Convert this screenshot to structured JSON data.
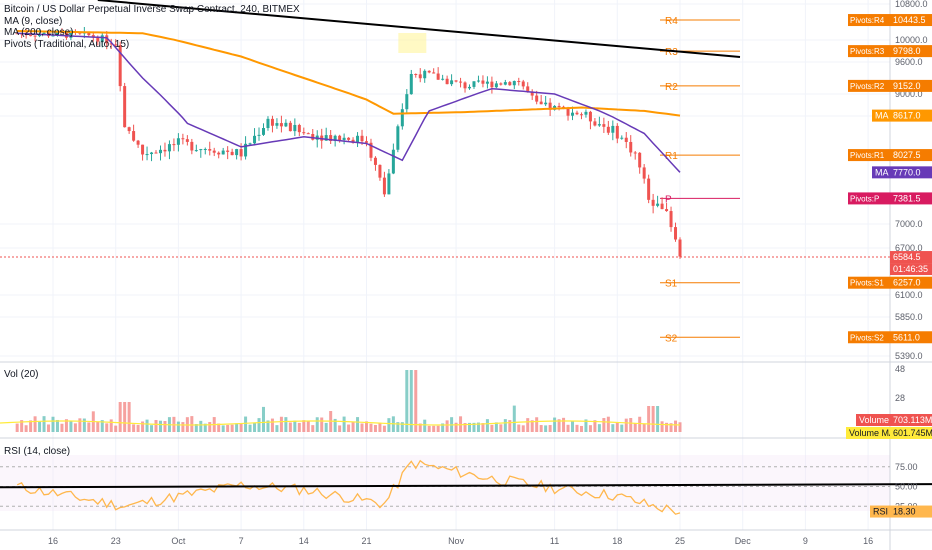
{
  "header": {
    "title": "Bitcoin / US Dollar Perpetual Inverse Swap Contract, 240, BITMEX",
    "ma1_label": "MA (9, close)",
    "ma2_label": "MA (200, close)",
    "pivots_label": "Pivots (Traditional, Auto, 15)"
  },
  "volume_panel": {
    "label": "Vol (20)"
  },
  "rsi_panel": {
    "label": "RSI (14, close)"
  },
  "price_axis": {
    "ticks": [
      "10800.0",
      "10000.0",
      "9600.0",
      "9000.0",
      "8610.0",
      "7000.0",
      "6700.0",
      "6100.0",
      "5850.0",
      "5390.0"
    ]
  },
  "volume_axis": {
    "ticks": [
      "48",
      "28"
    ]
  },
  "rsi_axis": {
    "ticks": [
      "75.00",
      "50.00",
      "25.00"
    ]
  },
  "x_axis": {
    "ticks": [
      "16",
      "23",
      "Oct",
      "7",
      "14",
      "21",
      "Nov",
      "11",
      "18",
      "25",
      "Dec",
      "9",
      "16"
    ]
  },
  "pivot_levels": [
    {
      "name": "R4",
      "value": 10443.5,
      "tag": "Pivots:R4",
      "tag_value": "10443.5",
      "color": "#f57c00"
    },
    {
      "name": "R3",
      "value": 9798.0,
      "tag": "Pivots:R3",
      "tag_value": "9798.0",
      "color": "#f57c00"
    },
    {
      "name": "R2",
      "value": 9152.0,
      "tag": "Pivots:R2",
      "tag_value": "9152.0",
      "color": "#f57c00"
    },
    {
      "name": "R1",
      "value": 8027.5,
      "tag": "Pivots:R1",
      "tag_value": "8027.5",
      "color": "#f57c00"
    },
    {
      "name": "P",
      "value": 7381.5,
      "tag": "Pivots:P",
      "tag_value": "7381.5",
      "color": "#d81b60"
    },
    {
      "name": "S1",
      "value": 6257.0,
      "tag": "Pivots:S1",
      "tag_value": "6257.0",
      "color": "#f57c00"
    },
    {
      "name": "S2",
      "value": 5611.0,
      "tag": "Pivots:S2",
      "tag_value": "5611.0",
      "color": "#f57c00"
    }
  ],
  "value_tags": {
    "ma200": {
      "label": "MA",
      "value": "8617.0",
      "color": "#ff9800"
    },
    "ma9": {
      "label": "MA",
      "value": "7770.0",
      "color": "#673ab7"
    },
    "last_price": {
      "value": "6584.5",
      "color": "#ef5350"
    },
    "countdown": {
      "value": "01:46:35",
      "color": "#ef5350"
    },
    "volume": {
      "label": "Volume",
      "value": "703.113M",
      "color": "#ef5350"
    },
    "volume_ma": {
      "label": "Volume MA",
      "value": "601.745M",
      "color": "#ffeb3b"
    },
    "rsi": {
      "label": "RSI",
      "value": "18.30",
      "color": "#ffb74d"
    }
  },
  "colors": {
    "up": "#26a69a",
    "down": "#ef5350",
    "ma9": "#673ab7",
    "ma200": "#ff9800",
    "rsi": "#ffb74d",
    "trendline": "#000000",
    "pivot": "#f57c00",
    "pivot_p": "#d81b60"
  },
  "chart_data": {
    "type": "candlestick",
    "price_series_key_points": [
      {
        "date": "Sep 12",
        "price": 10150
      },
      {
        "date": "Sep 20",
        "price": 10100
      },
      {
        "date": "Sep 23",
        "price": 9950
      },
      {
        "date": "Sep 24",
        "price": 8500
      },
      {
        "date": "Sep 26",
        "price": 8050
      },
      {
        "date": "Sep 30",
        "price": 8200
      },
      {
        "date": "Oct 7",
        "price": 8050
      },
      {
        "date": "Oct 10",
        "price": 8550
      },
      {
        "date": "Oct 14",
        "price": 8350
      },
      {
        "date": "Oct 21",
        "price": 8250
      },
      {
        "date": "Oct 23",
        "price": 7450
      },
      {
        "date": "Oct 25",
        "price": 8700
      },
      {
        "date": "Oct 26",
        "price": 9400
      },
      {
        "date": "Oct 28",
        "price": 9350
      },
      {
        "date": "Nov 1",
        "price": 9150
      },
      {
        "date": "Nov 7",
        "price": 9250
      },
      {
        "date": "Nov 9",
        "price": 8800
      },
      {
        "date": "Nov 14",
        "price": 8650
      },
      {
        "date": "Nov 18",
        "price": 8350
      },
      {
        "date": "Nov 20",
        "price": 8050
      },
      {
        "date": "Nov 22",
        "price": 7200
      },
      {
        "date": "Nov 23",
        "price": 7300
      },
      {
        "date": "Nov 25",
        "price": 6584.5
      }
    ],
    "ma200_key_points": [
      {
        "date": "Sep 12",
        "value": 10200
      },
      {
        "date": "Sep 26",
        "value": 10150
      },
      {
        "date": "Oct 7",
        "value": 9700
      },
      {
        "date": "Oct 14",
        "value": 9300
      },
      {
        "date": "Oct 21",
        "value": 8900
      },
      {
        "date": "Oct 24",
        "value": 8650
      },
      {
        "date": "Nov 1",
        "value": 8680
      },
      {
        "date": "Nov 14",
        "value": 8760
      },
      {
        "date": "Nov 21",
        "value": 8700
      },
      {
        "date": "Nov 25",
        "value": 8617
      }
    ],
    "ma9_key_points": [
      {
        "date": "Sep 12",
        "value": 10150
      },
      {
        "date": "Sep 22",
        "value": 10050
      },
      {
        "date": "Sep 26",
        "value": 9300
      },
      {
        "date": "Oct 1",
        "value": 8500
      },
      {
        "date": "Oct 7",
        "value": 8150
      },
      {
        "date": "Oct 14",
        "value": 8300
      },
      {
        "date": "Oct 21",
        "value": 8200
      },
      {
        "date": "Oct 25",
        "value": 7950
      },
      {
        "date": "Oct 28",
        "value": 8700
      },
      {
        "date": "Nov 4",
        "value": 9100
      },
      {
        "date": "Nov 11",
        "value": 9000
      },
      {
        "date": "Nov 16",
        "value": 8700
      },
      {
        "date": "Nov 21",
        "value": 8350
      },
      {
        "date": "Nov 25",
        "value": 7770
      }
    ],
    "rsi_key_points": [
      {
        "date": "Sep 12",
        "value": 50
      },
      {
        "date": "Sep 24",
        "value": 25
      },
      {
        "date": "Oct 7",
        "value": 52
      },
      {
        "date": "Oct 14",
        "value": 46
      },
      {
        "date": "Oct 23",
        "value": 28
      },
      {
        "date": "Oct 26",
        "value": 80
      },
      {
        "date": "Nov 4",
        "value": 60
      },
      {
        "date": "Nov 11",
        "value": 48
      },
      {
        "date": "Nov 18",
        "value": 38
      },
      {
        "date": "Nov 22",
        "value": 25
      },
      {
        "date": "Nov 25",
        "value": 18.3
      }
    ],
    "trendline_price": [
      {
        "date": "Sep 21",
        "price": 10800
      },
      {
        "date": "Nov 27",
        "price": 9700
      }
    ],
    "ylim_price": [
      5390,
      10800
    ],
    "ylim_rsi": [
      0,
      100
    ],
    "grid": true
  }
}
